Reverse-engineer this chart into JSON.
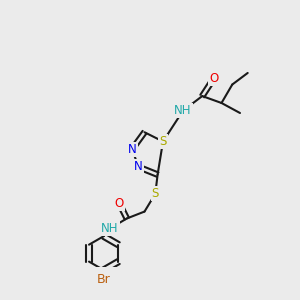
{
  "bg_color": "#ebebeb",
  "bond_color": "#1a1a1a",
  "bond_width": 1.5,
  "dbo": 0.01,
  "colors": {
    "N": "#0000ee",
    "O": "#ee0000",
    "S": "#aaaa00",
    "Br": "#bb6010",
    "H": "#20a8a8",
    "C": "#1a1a1a"
  },
  "fs": 8.5
}
